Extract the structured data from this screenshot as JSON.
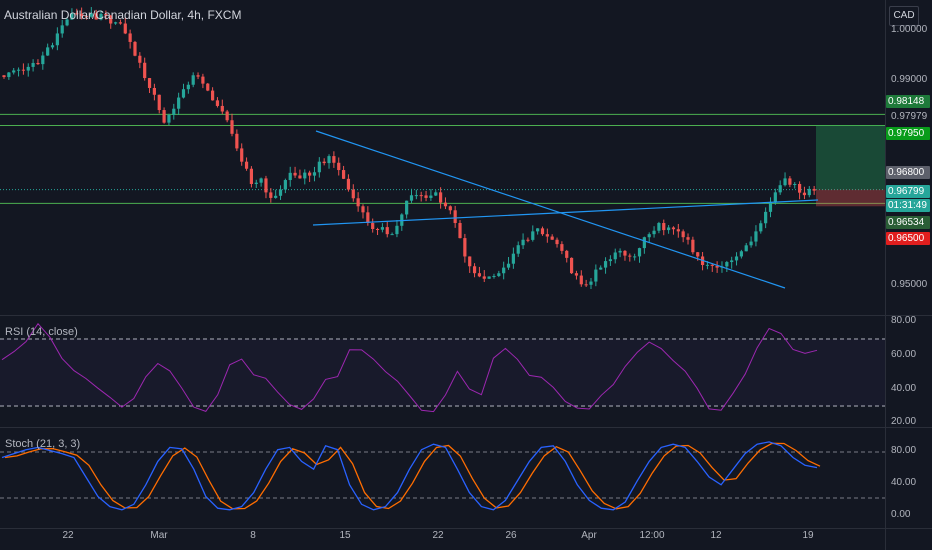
{
  "chart_title": "Australian Dollar/Canadian Dollar, 4h, FXCM",
  "currency": "CAD",
  "rsi_title": "RSI (14, close)",
  "stoch_title": "Stoch (21, 3, 3)",
  "price_axis": [
    "1.00000",
    "0.99000",
    "0.97979",
    "0.95000"
  ],
  "rsi_axis": [
    "80.00",
    "60.00",
    "40.00",
    "20.00"
  ],
  "stoch_axis": [
    "80.00",
    "40.00",
    "0.00"
  ],
  "price_tags": [
    {
      "label": "0.98148",
      "color": "#1e7a3a"
    },
    {
      "label": "0.97950",
      "color": "#089c1a"
    },
    {
      "label": "0.96800",
      "color": "#5d606b"
    },
    {
      "label": "0.96799",
      "color": "#26a69a"
    },
    {
      "label": "01:31:49",
      "color": "#26a69a"
    },
    {
      "label": "0.96534",
      "color": "#2a5e36"
    },
    {
      "label": "0.96500",
      "color": "#e01e1e"
    }
  ],
  "date_labels": [
    "22",
    "Mar",
    "8",
    "15",
    "22",
    "26",
    "Apr",
    "12:00",
    "12",
    "19"
  ],
  "colors": {
    "bg": "#131722",
    "up": "#26a69a",
    "down": "#ef5350",
    "rsi": "#9c27b0",
    "stoch_k": "#2962ff",
    "stoch_d": "#ff6d00",
    "trend": "#2196f3",
    "level": "#4caf50"
  },
  "chart_data": {
    "type": "candlestick",
    "symbol": "AUDCAD",
    "timeframe": "4h",
    "price_range": [
      0.9455,
      1.002
    ],
    "x_labels": [
      "22",
      "Mar",
      "8",
      "15",
      "22",
      "26",
      "Apr",
      "12:00",
      "12",
      "19"
    ],
    "close_path": [
      0.989,
      0.9895,
      0.99,
      0.9905,
      0.9935,
      0.996,
      0.9985,
      0.9995,
      0.999,
      0.9985,
      0.9992,
      0.998,
      0.996,
      0.992,
      0.988,
      0.985,
      0.98,
      0.9825,
      0.986,
      0.9885,
      0.987,
      0.984,
      0.982,
      0.978,
      0.973,
      0.969,
      0.97,
      0.9665,
      0.968,
      0.971,
      0.97,
      0.9705,
      0.973,
      0.974,
      0.9715,
      0.968,
      0.965,
      0.962,
      0.9608,
      0.96,
      0.9615,
      0.966,
      0.967,
      0.9665,
      0.9675,
      0.965,
      0.962,
      0.956,
      0.953,
      0.952,
      0.9525,
      0.954,
      0.9565,
      0.959,
      0.9605,
      0.96,
      0.959,
      0.957,
      0.953,
      0.951,
      0.9515,
      0.954,
      0.9555,
      0.957,
      0.956,
      0.9575,
      0.96,
      0.962,
      0.9612,
      0.9605,
      0.959,
      0.956,
      0.9545,
      0.954,
      0.955,
      0.956,
      0.958,
      0.9605,
      0.964,
      0.9675,
      0.97,
      0.969,
      0.967,
      0.9678
    ],
    "levels": [
      0.98148,
      0.9795,
      0.968,
      0.96534,
      0.965
    ],
    "trendlines": [
      {
        "from": [
          12,
          0.977
        ],
        "to": [
          31,
          0.95
        ]
      },
      {
        "from": [
          12,
          0.9598
        ],
        "to": [
          33,
          0.9655
        ]
      }
    ],
    "current_price": 0.96799,
    "countdown": "01:31:49",
    "rsi": {
      "range": [
        20,
        80
      ],
      "levels": [
        30,
        70
      ],
      "values": [
        60,
        64,
        70,
        76,
        72,
        60,
        50,
        44,
        40,
        33,
        28,
        35,
        45,
        55,
        52,
        40,
        30,
        28,
        40,
        52,
        55,
        48,
        45,
        38,
        30,
        27,
        36,
        48,
        45,
        60,
        62,
        55,
        50,
        44,
        36,
        30,
        26,
        35,
        48,
        42,
        40,
        56,
        64,
        60,
        50,
        45,
        40,
        36,
        30,
        27,
        35,
        44,
        52,
        62,
        68,
        64,
        58,
        50,
        40,
        32,
        30,
        40,
        52,
        66,
        74,
        70,
        62,
        58,
        60
      ]
    },
    "stoch": {
      "range": [
        0,
        100
      ],
      "levels": [
        20,
        80
      ],
      "k": [
        75,
        80,
        85,
        88,
        84,
        80,
        75,
        50,
        25,
        12,
        8,
        15,
        40,
        70,
        88,
        86,
        60,
        25,
        10,
        8,
        12,
        30,
        60,
        85,
        88,
        70,
        60,
        90,
        85,
        40,
        15,
        8,
        12,
        30,
        60,
        85,
        92,
        88,
        60,
        30,
        12,
        8,
        20,
        45,
        70,
        88,
        90,
        70,
        40,
        20,
        10,
        8,
        18,
        45,
        70,
        88,
        92,
        88,
        70,
        50,
        40,
        60,
        80,
        92,
        95,
        90,
        75,
        65,
        62
      ]
    }
  }
}
